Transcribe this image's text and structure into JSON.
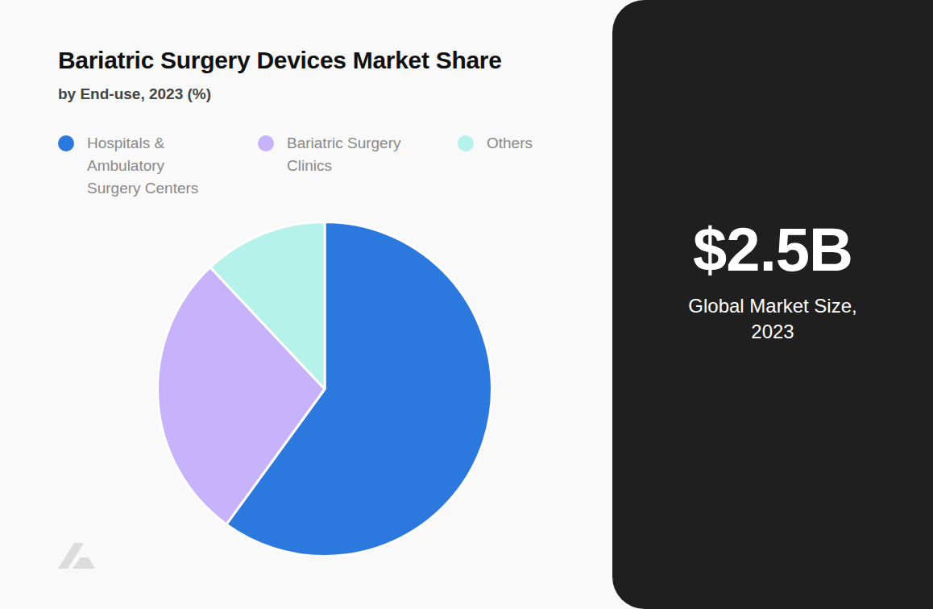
{
  "chart_data": {
    "type": "pie",
    "title": "Bariatric Surgery Devices Market Share",
    "subtitle": "by End-use, 2023 (%)",
    "categories": [
      "Hospitals & Ambulatory Surgery Centers",
      "Bariatric Surgery Clinics",
      "Others"
    ],
    "values": [
      60,
      28,
      12
    ],
    "colors": [
      "#2b78de",
      "#c7b3fb",
      "#b5f2e9"
    ],
    "legend": "top",
    "data_labels": false,
    "annotations": [
      "$2.5B",
      "Global Market Size, 2023"
    ]
  }
}
